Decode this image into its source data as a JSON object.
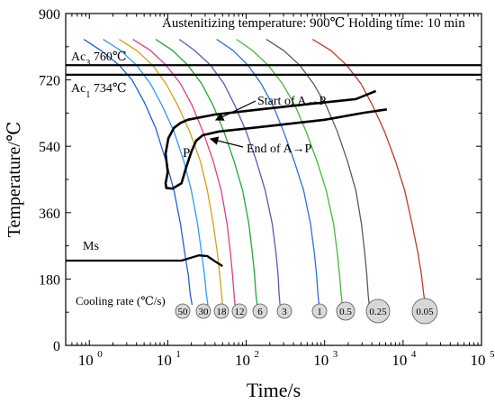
{
  "chart_data": {
    "type": "line",
    "title": "",
    "xlabel": "Time/s",
    "ylabel": "Temperature/℃",
    "x_scale": "log",
    "xlim": [
      0.5,
      100000
    ],
    "ylim": [
      0,
      900
    ],
    "x_ticks": [
      1,
      10,
      100,
      1000,
      10000,
      100000
    ],
    "x_tick_labels": [
      {
        "base": "10",
        "exp": "0"
      },
      {
        "base": "10",
        "exp": "1"
      },
      {
        "base": "10",
        "exp": "2"
      },
      {
        "base": "10",
        "exp": "3"
      },
      {
        "base": "10",
        "exp": "4"
      },
      {
        "base": "10",
        "exp": "5"
      }
    ],
    "y_ticks": [
      0,
      180,
      360,
      540,
      720,
      900
    ],
    "y_tick_labels": [
      "0",
      "180",
      "360",
      "540",
      "720",
      "900"
    ],
    "header_text": "Austenitizing temperature: 900℃ Holding time: 10 min",
    "ac3": {
      "pre": "Ac",
      "sub": "3",
      "post": " 760℃",
      "temp": 760
    },
    "ac1": {
      "pre": "Ac",
      "sub": "1",
      "post": " 734℃",
      "temp": 734
    },
    "ms_label": "Ms",
    "ms_line": [
      [
        0.5,
        230
      ],
      [
        15,
        230
      ],
      [
        20,
        238
      ],
      [
        25,
        244
      ],
      [
        32,
        242
      ],
      [
        40,
        228
      ],
      [
        50,
        215
      ]
    ],
    "transformation_start_label": "Start of A→P",
    "transformation_end_label": "End of A→P",
    "p_label": "P",
    "start_curve": [
      [
        10,
        470
      ],
      [
        9.4,
        520
      ],
      [
        10.2,
        562
      ],
      [
        12,
        590
      ],
      [
        14.5,
        603
      ],
      [
        18,
        612
      ],
      [
        40,
        626
      ],
      [
        150,
        640
      ],
      [
        600,
        654
      ],
      [
        2500,
        668
      ],
      [
        4500,
        690
      ]
    ],
    "end_curve": [
      [
        10,
        470
      ],
      [
        9.4,
        440
      ],
      [
        9.6,
        427
      ],
      [
        11.5,
        425
      ],
      [
        15,
        440
      ],
      [
        17,
        480
      ],
      [
        20,
        525
      ],
      [
        23,
        555
      ],
      [
        28,
        570
      ],
      [
        45,
        580
      ],
      [
        200,
        595
      ],
      [
        1000,
        612
      ],
      [
        3000,
        630
      ],
      [
        6200,
        640
      ]
    ],
    "cooling_rate_label": "Cooling rate (℃/s)",
    "cooling_rates": [
      "50",
      "30",
      "18",
      "12",
      "6",
      "3",
      "1",
      "0.5",
      "0.25",
      "0.05"
    ],
    "series": [
      {
        "name": "50",
        "color": "#1f5fd6",
        "x": [
          0.85,
          1.4,
          2.4,
          3.5,
          5,
          7,
          9.5,
          12,
          14.5,
          16.5,
          18.3,
          19.3,
          20.4
        ],
        "y": [
          830,
          800,
          760,
          720,
          660,
          590,
          500,
          420,
          330,
          250,
          190,
          140,
          110
        ]
      },
      {
        "name": "30",
        "color": "#2a9df4",
        "x": [
          1.5,
          2.5,
          4,
          6,
          8.5,
          12,
          16,
          20,
          24,
          27,
          29.5,
          31,
          32.5
        ],
        "y": [
          830,
          800,
          760,
          710,
          650,
          580,
          500,
          420,
          330,
          250,
          190,
          140,
          110
        ]
      },
      {
        "name": "18",
        "color": "#d4a017",
        "x": [
          2.4,
          4,
          6.4,
          9.5,
          13.5,
          19,
          26,
          32,
          38,
          43,
          46,
          48.5,
          50
        ],
        "y": [
          830,
          800,
          760,
          710,
          650,
          580,
          500,
          420,
          330,
          250,
          190,
          140,
          110
        ]
      },
      {
        "name": "12",
        "color": "#e03c8a",
        "x": [
          3.6,
          6,
          9.5,
          14.5,
          20.5,
          28,
          38,
          48,
          57,
          63,
          67,
          70,
          72
        ],
        "y": [
          830,
          800,
          760,
          710,
          650,
          580,
          500,
          420,
          330,
          250,
          190,
          140,
          110
        ]
      },
      {
        "name": "6",
        "color": "#1faa2e",
        "x": [
          7,
          11.5,
          18,
          27,
          38,
          52,
          70,
          90,
          108,
          120,
          128,
          133,
          138
        ],
        "y": [
          830,
          800,
          760,
          710,
          650,
          580,
          500,
          420,
          330,
          250,
          190,
          140,
          110
        ]
      },
      {
        "name": "3",
        "color": "#6a50b8",
        "x": [
          14,
          22,
          35,
          52,
          72,
          100,
          135,
          175,
          215,
          240,
          255,
          263,
          270
        ],
        "y": [
          830,
          800,
          760,
          710,
          650,
          580,
          500,
          420,
          330,
          250,
          190,
          140,
          110
        ]
      },
      {
        "name": "1",
        "color": "#2b6fde",
        "x": [
          42,
          68,
          105,
          155,
          220,
          300,
          410,
          540,
          660,
          740,
          790,
          820,
          850
        ],
        "y": [
          830,
          800,
          760,
          710,
          650,
          580,
          500,
          420,
          330,
          250,
          190,
          140,
          110
        ]
      },
      {
        "name": "0.5",
        "color": "#45b83a",
        "x": [
          75,
          120,
          190,
          290,
          420,
          580,
          800,
          1050,
          1300,
          1450,
          1550,
          1620,
          1680
        ],
        "y": [
          830,
          800,
          760,
          710,
          650,
          580,
          500,
          420,
          330,
          250,
          190,
          140,
          110
        ]
      },
      {
        "name": "0.25",
        "color": "#5a5a5a",
        "x": [
          180,
          300,
          480,
          720,
          1050,
          1450,
          1950,
          2500,
          2950,
          3250,
          3450,
          3580,
          3700
        ],
        "y": [
          830,
          800,
          760,
          710,
          650,
          580,
          500,
          420,
          330,
          250,
          190,
          140,
          110
        ]
      },
      {
        "name": "0.05",
        "color": "#c0392b",
        "x": [
          700,
          1200,
          1900,
          2900,
          4100,
          5800,
          8000,
          10500,
          13000,
          15500,
          17200,
          18300,
          19300
        ],
        "y": [
          830,
          800,
          760,
          710,
          650,
          580,
          500,
          420,
          330,
          250,
          190,
          140,
          110
        ]
      }
    ]
  }
}
